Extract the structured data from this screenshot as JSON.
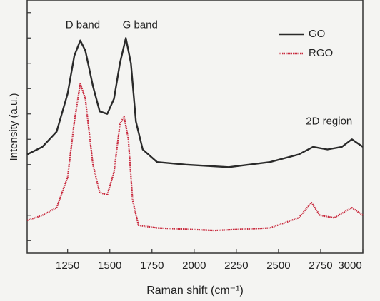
{
  "chart_data": {
    "type": "line",
    "x_label": "Raman shift (cm⁻¹)",
    "y_label": "Intensity (a.u.)",
    "annotations": [
      {
        "text": "D band",
        "x": 1340,
        "y": 90
      },
      {
        "text": "G band",
        "x": 1680,
        "y": 90
      },
      {
        "text": "2D region",
        "x": 2800,
        "y": 52
      }
    ],
    "xlim": [
      1010,
      3000
    ],
    "xticks": [
      1250,
      1500,
      1750,
      2000,
      2250,
      2500,
      2750,
      3000
    ],
    "ylim": [
      0,
      100
    ],
    "yticks": [
      5,
      15,
      25,
      35,
      45,
      55,
      65,
      75,
      85,
      95
    ],
    "legend": "upper right",
    "series": [
      {
        "name": "GO",
        "color": "#2a2a2a",
        "style": "solid",
        "x": [
          1010,
          1100,
          1185,
          1250,
          1290,
          1325,
          1355,
          1400,
          1440,
          1485,
          1525,
          1560,
          1595,
          1625,
          1655,
          1695,
          1780,
          1950,
          2205,
          2450,
          2620,
          2705,
          2790,
          2875,
          2935,
          3000
        ],
        "values": [
          39,
          42,
          48,
          63,
          78,
          84,
          80,
          66,
          56,
          55,
          61,
          75,
          85,
          75,
          52,
          41,
          36,
          35,
          34,
          36,
          39,
          42,
          41,
          42,
          45,
          42
        ]
      },
      {
        "name": "RGO",
        "color": "#c8283c",
        "style": "dotted",
        "x": [
          1010,
          1100,
          1185,
          1250,
          1290,
          1325,
          1355,
          1400,
          1440,
          1485,
          1525,
          1560,
          1585,
          1610,
          1635,
          1670,
          1780,
          2120,
          2450,
          2620,
          2695,
          2745,
          2830,
          2935,
          3000
        ],
        "values": [
          13,
          15,
          18,
          30,
          52,
          67,
          61,
          35,
          24,
          23,
          32,
          51,
          54,
          45,
          21,
          11,
          10,
          9,
          10,
          14,
          20,
          15,
          14,
          18,
          15
        ]
      }
    ]
  }
}
